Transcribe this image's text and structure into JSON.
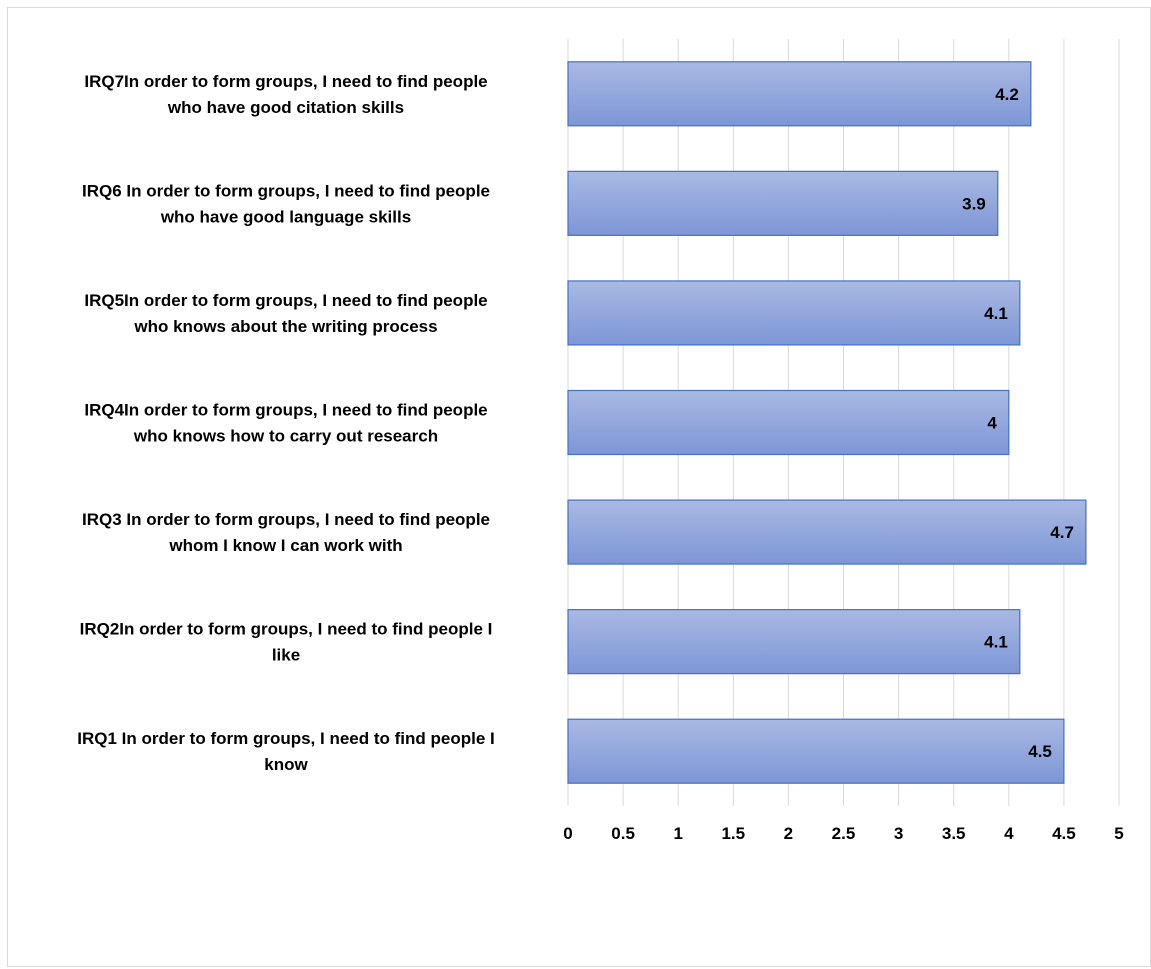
{
  "chart_data": {
    "type": "bar",
    "orientation": "horizontal",
    "categories": [
      [
        "IRQ7In order to form groups, I need to find people",
        "who have good citation skills"
      ],
      [
        "IRQ6 In order to form groups, I need to find people",
        "who have good language skills"
      ],
      [
        "IRQ5In order to form groups, I need to find people",
        "who knows about the writing process"
      ],
      [
        "IRQ4In order to form groups, I need to find people",
        "who knows how to carry out research"
      ],
      [
        "IRQ3 In order to form groups, I need to find people",
        "whom I know I can work with"
      ],
      [
        "IRQ2In order to form groups, I need to find people I",
        "like"
      ],
      [
        "IRQ1 In order to form groups, I need to find people I",
        "know"
      ]
    ],
    "values": [
      4.2,
      3.9,
      4.1,
      4.0,
      4.7,
      4.1,
      4.5
    ],
    "data_labels": [
      "4.2",
      "3.9",
      "4.1",
      "4",
      "4.7",
      "4.1",
      "4.5"
    ],
    "xlim": [
      0,
      5
    ],
    "ticks": [
      0,
      0.5,
      1,
      1.5,
      2,
      2.5,
      3,
      3.5,
      4,
      4.5,
      5
    ],
    "tick_labels": [
      "0",
      "0.5",
      "1",
      "1.5",
      "2",
      "2.5",
      "3",
      "3.5",
      "4",
      "4.5",
      "5"
    ],
    "grid": "vertical",
    "legend": "none",
    "colors": {
      "bar_light": "#aab9e3",
      "bar_dark": "#7d96d6",
      "bar_border": "#4472c4",
      "grid": "#d9d9d9"
    }
  }
}
